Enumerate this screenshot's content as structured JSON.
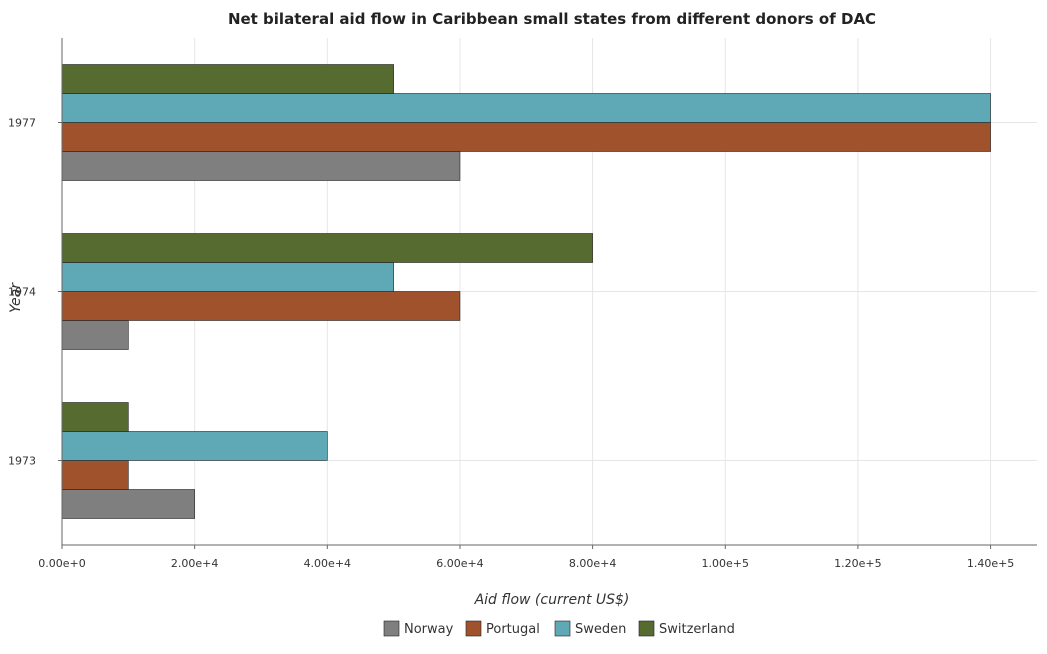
{
  "chart_data": {
    "type": "bar",
    "orientation": "horizontal",
    "title": "Net bilateral aid flow in Caribbean small states from different donors of DAC",
    "xlabel": "Aid flow (current US$)",
    "ylabel": "Year",
    "categories": [
      "1973",
      "1974",
      "1977"
    ],
    "series": [
      {
        "name": "Norway",
        "color": "#7f7f7f",
        "values": [
          20000,
          10000,
          60000
        ]
      },
      {
        "name": "Portugal",
        "color": "#a0522d",
        "values": [
          10000,
          60000,
          140000
        ]
      },
      {
        "name": "Sweden",
        "color": "#5fa8b5",
        "values": [
          40000,
          50000,
          140000
        ]
      },
      {
        "name": "Switzerland",
        "color": "#556b2f",
        "values": [
          10000,
          80000,
          50000
        ]
      }
    ],
    "xlim": [
      0,
      147000
    ],
    "xticks": [
      0,
      20000,
      40000,
      60000,
      80000,
      100000,
      120000,
      140000
    ],
    "xtick_labels": [
      "0.00e+0",
      "2.00e+4",
      "4.00e+4",
      "6.00e+4",
      "8.00e+4",
      "1.00e+5",
      "1.20e+5",
      "1.40e+5"
    ],
    "grid": true,
    "legend_position": "bottom"
  }
}
